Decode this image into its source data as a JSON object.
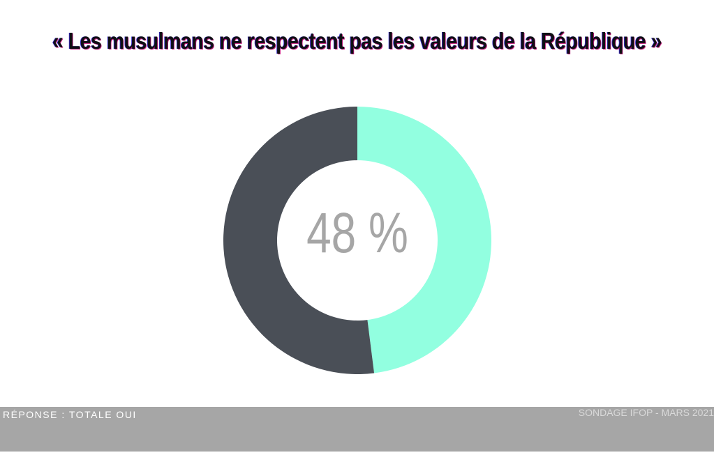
{
  "chart_data": {
    "type": "pie",
    "title": "« Les musulmans ne respectent pas les valeurs de la République »",
    "center_label": "48 %",
    "slices": [
      {
        "value": 48,
        "color": "#92ffe0"
      },
      {
        "value": 52,
        "color": "#4a4f57"
      }
    ]
  },
  "footer": {
    "left_text": "RÉPONSE : TOTALE OUI",
    "right_text": "SONDAGE IFOP - MARS 2021",
    "background": "#a6a6a6"
  }
}
